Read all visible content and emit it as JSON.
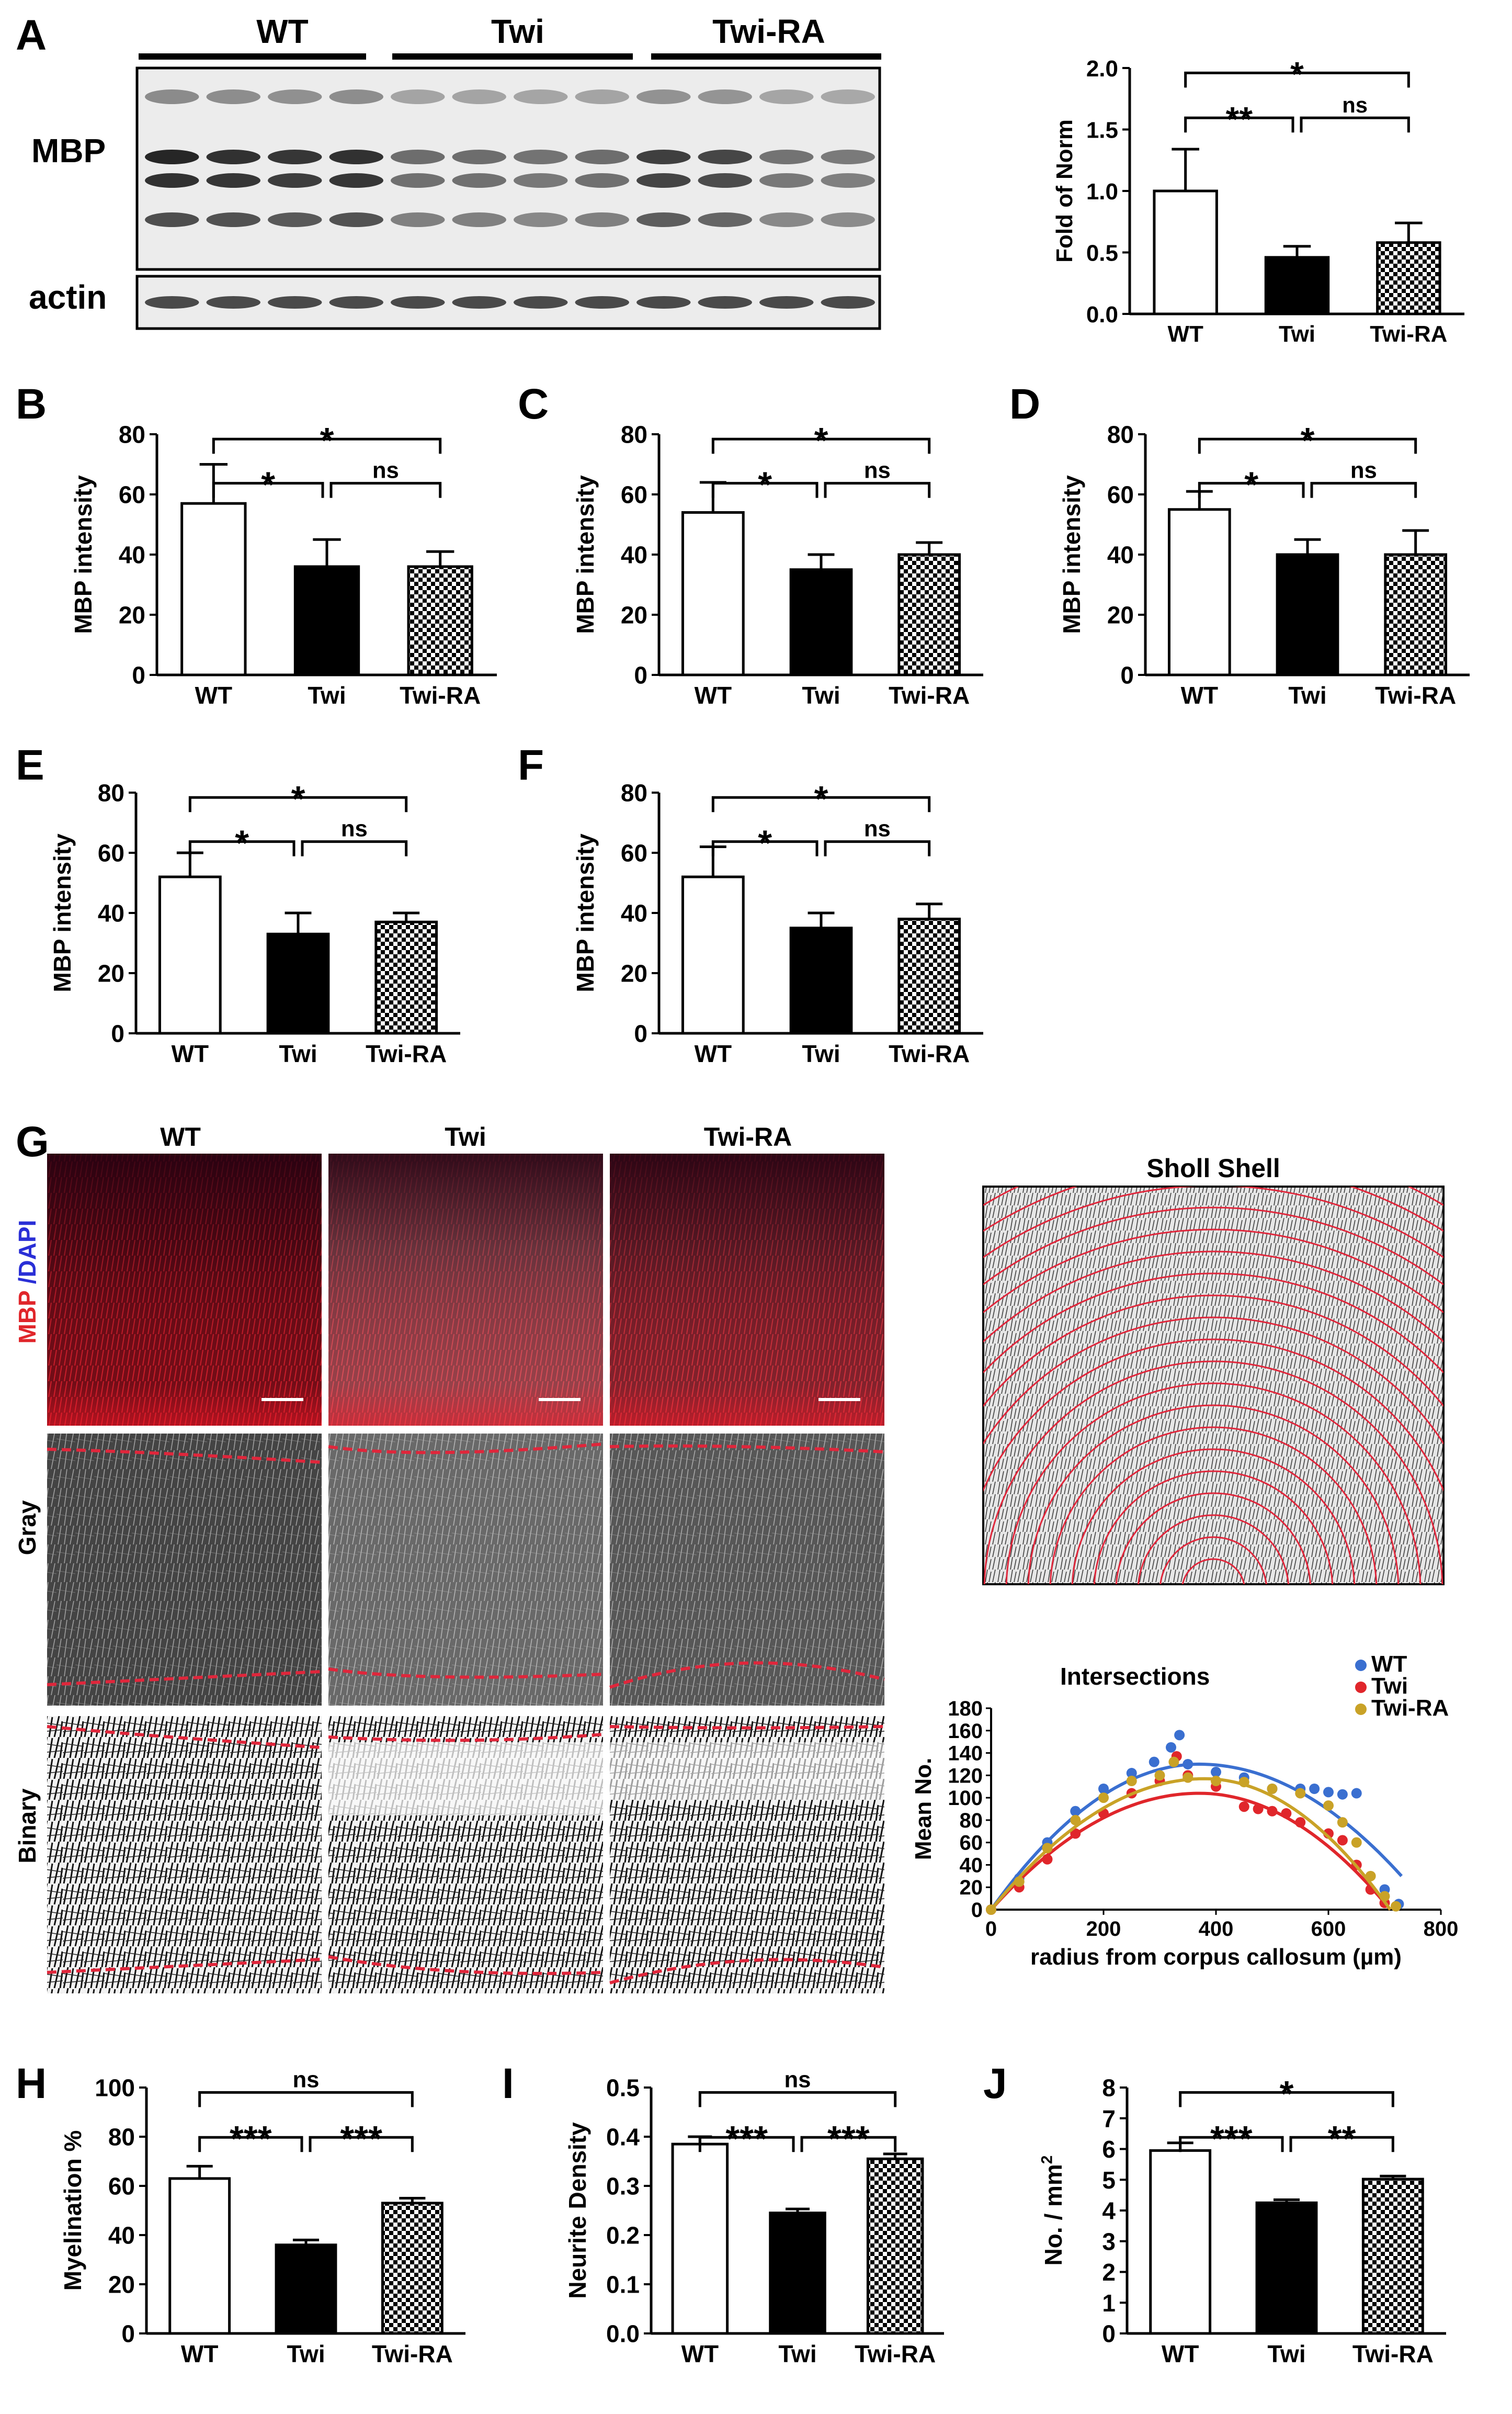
{
  "colors": {
    "bar_wt": "#ffffff",
    "bar_twi": "#000000",
    "series_wt": "#3a6fd0",
    "series_twi": "#e0262b",
    "series_twira": "#c9a227",
    "mbp_label": "#e0262b",
    "dapi_label": "#2a2fd6",
    "trace_red": "#e0263b"
  },
  "panel_letters": [
    "A",
    "B",
    "C",
    "D",
    "E",
    "F",
    "G",
    "H",
    "I",
    "J"
  ],
  "blot": {
    "groups": [
      "WT",
      "Twi",
      "Twi-RA"
    ],
    "rows": [
      "MBP",
      "actin"
    ]
  },
  "micrograph": {
    "columns": [
      "WT",
      "Twi",
      "Twi-RA"
    ],
    "row_label_mbp": "MBP",
    "row_label_sep": " /",
    "row_label_dapi": "DAPI",
    "row_label_gray": "Gray",
    "row_label_binary": "Binary",
    "sholl_title": "Sholl Shell"
  },
  "chart_data": [
    {
      "id": "A",
      "type": "bar",
      "categories": [
        "WT",
        "Twi",
        "Twi-RA"
      ],
      "values": [
        1.0,
        0.46,
        0.58
      ],
      "errors": [
        0.34,
        0.09,
        0.16
      ],
      "ylabel": "Fold of Norm",
      "ylim": [
        0,
        2.0
      ],
      "yticks": [
        "0.0",
        "0.5",
        "1.0",
        "1.5",
        "2.0"
      ],
      "significance": [
        "**",
        "ns",
        "*"
      ]
    },
    {
      "id": "B",
      "type": "bar",
      "categories": [
        "WT",
        "Twi",
        "Twi-RA"
      ],
      "values": [
        57,
        36,
        36
      ],
      "errors": [
        13,
        9,
        5
      ],
      "ylabel": "MBP intensity",
      "ylim": [
        0,
        80
      ],
      "yticks": [
        "0",
        "20",
        "40",
        "60",
        "80"
      ],
      "significance": [
        "*",
        "ns",
        "*"
      ]
    },
    {
      "id": "C",
      "type": "bar",
      "categories": [
        "WT",
        "Twi",
        "Twi-RA"
      ],
      "values": [
        54,
        35,
        40
      ],
      "errors": [
        10,
        5,
        4
      ],
      "ylabel": "MBP intensity",
      "ylim": [
        0,
        80
      ],
      "yticks": [
        "0",
        "20",
        "40",
        "60",
        "80"
      ],
      "significance": [
        "*",
        "ns",
        "*"
      ]
    },
    {
      "id": "D",
      "type": "bar",
      "categories": [
        "WT",
        "Twi",
        "Twi-RA"
      ],
      "values": [
        55,
        40,
        40
      ],
      "errors": [
        6,
        5,
        8
      ],
      "ylabel": "MBP intensity",
      "ylim": [
        0,
        80
      ],
      "yticks": [
        "0",
        "20",
        "40",
        "60",
        "80"
      ],
      "significance": [
        "*",
        "ns",
        "*"
      ]
    },
    {
      "id": "E",
      "type": "bar",
      "categories": [
        "WT",
        "Twi",
        "Twi-RA"
      ],
      "values": [
        52,
        33,
        37
      ],
      "errors": [
        8,
        7,
        3
      ],
      "ylabel": "MBP intensity",
      "ylim": [
        0,
        80
      ],
      "yticks": [
        "0",
        "20",
        "40",
        "60",
        "80"
      ],
      "significance": [
        "*",
        "ns",
        "*"
      ]
    },
    {
      "id": "F",
      "type": "bar",
      "categories": [
        "WT",
        "Twi",
        "Twi-RA"
      ],
      "values": [
        52,
        35,
        38
      ],
      "errors": [
        10,
        5,
        5
      ],
      "ylabel": "MBP intensity",
      "ylim": [
        0,
        80
      ],
      "yticks": [
        "0",
        "20",
        "40",
        "60",
        "80"
      ],
      "significance": [
        "*",
        "ns",
        "*"
      ]
    },
    {
      "id": "G-sholl",
      "type": "scatter",
      "title": "Intersections",
      "xlabel": "radius from corpus callosum (µm)",
      "ylabel": "Mean No.",
      "xlim": [
        0,
        800
      ],
      "ylim": [
        0,
        180
      ],
      "xticks": [
        "0",
        "200",
        "400",
        "600",
        "800"
      ],
      "yticks": [
        "0",
        "20",
        "40",
        "60",
        "80",
        "100",
        "120",
        "140",
        "160",
        "180"
      ],
      "legend": "top-right",
      "series": [
        {
          "name": "WT",
          "x": [
            0,
            50,
            100,
            150,
            200,
            250,
            290,
            320,
            335,
            350,
            400,
            450,
            500,
            550,
            575,
            600,
            625,
            650,
            700,
            725
          ],
          "y": [
            0,
            28,
            60,
            88,
            108,
            122,
            132,
            145,
            156,
            130,
            123,
            118,
            108,
            108,
            108,
            105,
            103,
            104,
            18,
            5
          ],
          "fit": {
            "peak_x": 370,
            "peak_y": 130,
            "end_x": 730,
            "end_y": 30
          }
        },
        {
          "name": "Twi",
          "x": [
            0,
            50,
            100,
            150,
            200,
            250,
            300,
            330,
            350,
            400,
            450,
            475,
            500,
            525,
            550,
            600,
            625,
            650,
            675,
            700
          ],
          "y": [
            0,
            20,
            45,
            68,
            86,
            104,
            115,
            137,
            120,
            110,
            92,
            90,
            88,
            86,
            78,
            68,
            62,
            40,
            18,
            6
          ],
          "fit": {
            "peak_x": 370,
            "peak_y": 104,
            "end_x": 710,
            "end_y": 0
          }
        },
        {
          "name": "Twi-RA",
          "x": [
            0,
            50,
            100,
            150,
            200,
            250,
            300,
            325,
            350,
            400,
            450,
            500,
            550,
            600,
            625,
            650,
            675,
            700,
            720
          ],
          "y": [
            0,
            25,
            55,
            80,
            100,
            115,
            120,
            132,
            118,
            115,
            114,
            108,
            104,
            93,
            78,
            60,
            30,
            12,
            3
          ],
          "fit": {
            "peak_x": 380,
            "peak_y": 117,
            "end_x": 710,
            "end_y": 0
          }
        }
      ]
    },
    {
      "id": "H",
      "type": "bar",
      "categories": [
        "WT",
        "Twi",
        "Twi-RA"
      ],
      "values": [
        63,
        36,
        53
      ],
      "errors": [
        5,
        2,
        2
      ],
      "ylabel": "Myelination %",
      "ylim": [
        0,
        100
      ],
      "yticks": [
        "0",
        "20",
        "40",
        "60",
        "80",
        "100"
      ],
      "significance": [
        "***",
        "***",
        "ns"
      ]
    },
    {
      "id": "I",
      "type": "bar",
      "categories": [
        "WT",
        "Twi",
        "Twi-RA"
      ],
      "values": [
        0.385,
        0.245,
        0.355
      ],
      "errors": [
        0.015,
        0.008,
        0.01
      ],
      "ylabel": "Neurite Density",
      "ylim": [
        0,
        0.5
      ],
      "yticks": [
        "0.0",
        "0.1",
        "0.2",
        "0.3",
        "0.4",
        "0.5"
      ],
      "significance": [
        "***",
        "***",
        "ns"
      ]
    },
    {
      "id": "J",
      "type": "bar",
      "categories": [
        "WT",
        "Twi",
        "Twi-RA"
      ],
      "values": [
        5.95,
        4.25,
        5.02
      ],
      "errors": [
        0.25,
        0.1,
        0.1
      ],
      "ylabel": "No. / mm",
      "ylabel_sup": "2",
      "ylim": [
        0,
        8
      ],
      "yticks": [
        "0",
        "1",
        "2",
        "3",
        "4",
        "5",
        "6",
        "7",
        "8"
      ],
      "significance": [
        "***",
        "**",
        "*"
      ]
    }
  ]
}
